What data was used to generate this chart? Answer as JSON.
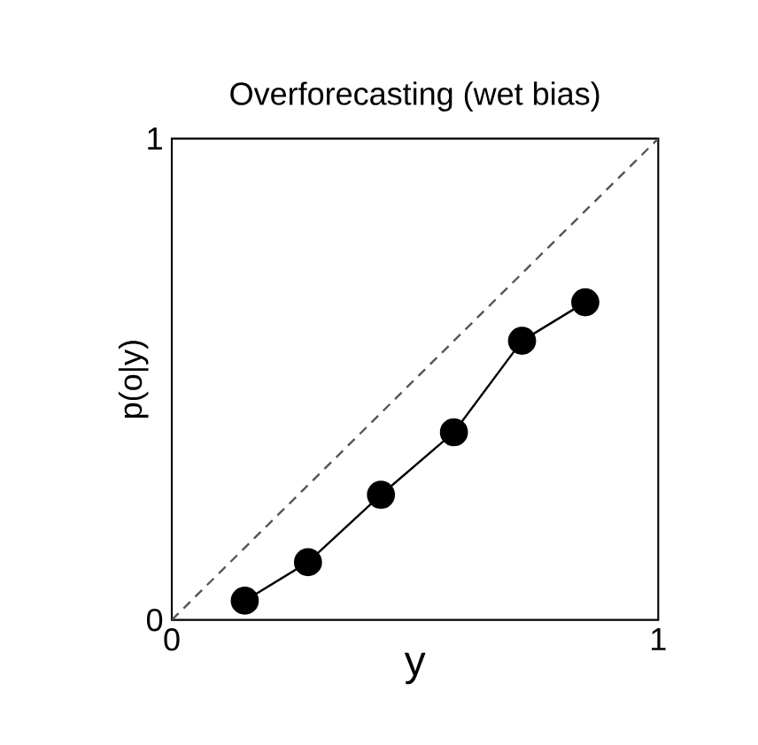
{
  "chart_data": {
    "type": "line",
    "title": "Overforecasting (wet bias)",
    "xlabel": "y",
    "ylabel": "p(o|y)",
    "xlim": [
      0,
      1
    ],
    "ylim": [
      0,
      1
    ],
    "xticks": [
      0,
      1
    ],
    "yticks": [
      0,
      1
    ],
    "marker": "circle",
    "series": [
      {
        "color": "#555555",
        "x": [
          0,
          1
        ],
        "values": [
          0,
          1
        ],
        "line_style": "dashed",
        "marker": "none"
      },
      {
        "color": "#000000",
        "x": [
          0.15,
          0.28,
          0.43,
          0.58,
          0.72,
          0.85
        ],
        "values": [
          0.04,
          0.12,
          0.26,
          0.39,
          0.58,
          0.66
        ],
        "line_style": "solid"
      }
    ]
  }
}
